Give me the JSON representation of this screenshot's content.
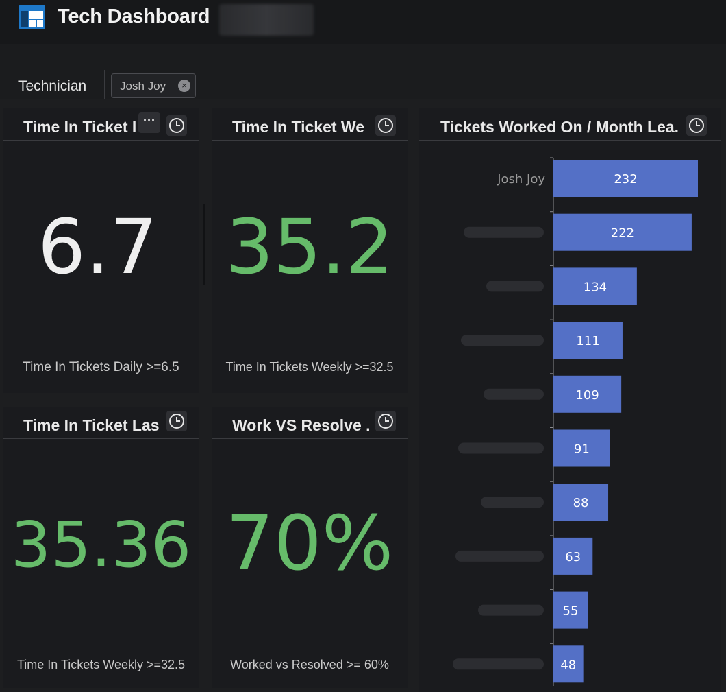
{
  "header": {
    "title": "Tech Dashboard"
  },
  "filter": {
    "label": "Technician",
    "chip_value": "Josh Joy",
    "chip_clear": "×"
  },
  "cards": [
    {
      "title": "Time In Ticket Daily",
      "title_visible": "Time In Ticket I",
      "value": "6.7",
      "value_color": "#efefef",
      "subtitle": "Time In Tickets Daily >=6.5"
    },
    {
      "title": "Time In Ticket Weekly",
      "title_visible": "Time In Ticket We",
      "value": "35.2",
      "value_color": "#66bb6a",
      "subtitle": "Time In Tickets Weekly >=32.5"
    },
    {
      "title": "Time In Ticket Last",
      "title_visible": "Time In Ticket Las",
      "value": "35.36",
      "value_color": "#66bb6a",
      "subtitle": "Time In Tickets Weekly >=32.5"
    },
    {
      "title": "Work VS Resolve",
      "title_visible": "Work VS Resolve .",
      "value": "70%",
      "value_color": "#66bb6a",
      "subtitle": "Worked vs Resolved >= 60%"
    }
  ],
  "card_menu": "···",
  "leaderboard": {
    "title": "Tickets Worked On / Month Leaderboard",
    "title_visible": "Tickets Worked On / Month Lea."
  },
  "colors": {
    "bar": "#5470c6",
    "good": "#66bb6a",
    "panel": "#1a1b1e"
  },
  "chart_data": {
    "type": "bar",
    "orientation": "horizontal",
    "categories": [
      "Josh Joy",
      "",
      "",
      "",
      "",
      "",
      "",
      "",
      "",
      ""
    ],
    "values": [
      232,
      222,
      134,
      111,
      109,
      91,
      88,
      63,
      55,
      48
    ],
    "xlim": [
      0,
      240
    ],
    "grid": false,
    "legend": "none"
  }
}
